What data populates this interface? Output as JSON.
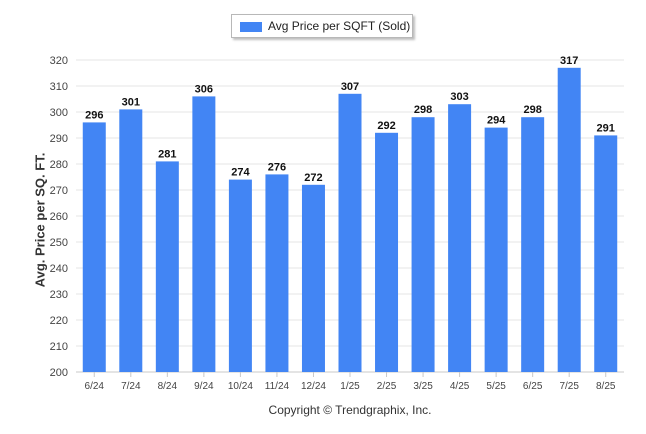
{
  "chart_data": {
    "type": "bar",
    "categories": [
      "6/24",
      "7/24",
      "8/24",
      "9/24",
      "10/24",
      "11/24",
      "12/24",
      "1/25",
      "2/25",
      "3/25",
      "4/25",
      "5/25",
      "6/25",
      "7/25",
      "8/25"
    ],
    "series": [
      {
        "name": "Avg Price per SQFT (Sold)",
        "values": [
          296,
          301,
          281,
          306,
          274,
          276,
          272,
          307,
          292,
          298,
          303,
          294,
          298,
          317,
          291
        ]
      }
    ],
    "ylabel": "Avg. Price per SQ. FT.",
    "xlabel": "",
    "ylim": [
      200,
      320
    ],
    "yticks": [
      200,
      210,
      220,
      230,
      240,
      250,
      260,
      270,
      280,
      290,
      300,
      310,
      320
    ],
    "legend_position": "top-center",
    "grid": true,
    "bar_color": "#4285f4",
    "grid_color": "#e6e6e6"
  },
  "footer": {
    "copyright": "Copyright © Trendgraphix, Inc."
  }
}
